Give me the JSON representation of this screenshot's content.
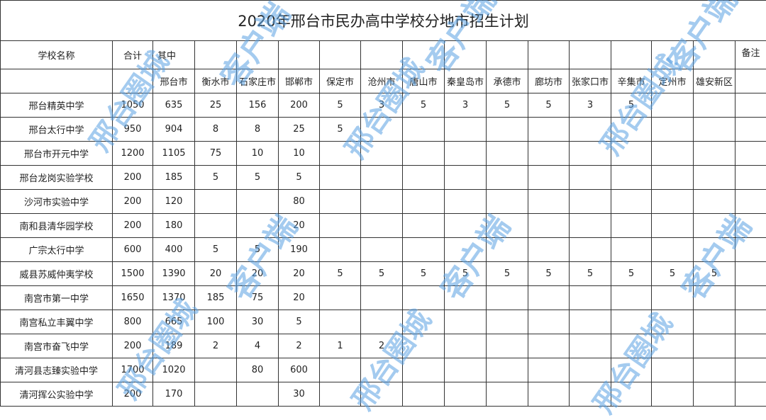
{
  "title": "2020年邢台市民办高中学校分地市招生计划",
  "header": {
    "school_name": "学校名称",
    "total": "合计",
    "of_which": "其中",
    "remarks": "备注",
    "cities": [
      "邢台市",
      "衡水市",
      "石家庄市",
      "邯郸市",
      "保定市",
      "沧州市",
      "唐山市",
      "秦皇岛市",
      "承德市",
      "廊坊市",
      "张家口市",
      "辛集市",
      "定州市",
      "雄安新区"
    ]
  },
  "rows": [
    {
      "name": "邢台精英中学",
      "total": "1050",
      "values": [
        "635",
        "25",
        "156",
        "200",
        "5",
        "3",
        "5",
        "3",
        "5",
        "5",
        "3",
        "5",
        "",
        ""
      ]
    },
    {
      "name": "邢台太行中学",
      "total": "950",
      "values": [
        "904",
        "8",
        "8",
        "25",
        "5",
        "",
        "",
        "",
        "",
        "",
        "",
        "",
        "",
        ""
      ]
    },
    {
      "name": "邢台市开元中学",
      "total": "1200",
      "values": [
        "1105",
        "75",
        "10",
        "10",
        "",
        "",
        "",
        "",
        "",
        "",
        "",
        "",
        "",
        ""
      ]
    },
    {
      "name": "邢台龙岗实验学校",
      "total": "200",
      "values": [
        "185",
        "5",
        "5",
        "5",
        "",
        "",
        "",
        "",
        "",
        "",
        "",
        "",
        "",
        ""
      ]
    },
    {
      "name": "沙河市实验中学",
      "total": "200",
      "values": [
        "120",
        "",
        "",
        "80",
        "",
        "",
        "",
        "",
        "",
        "",
        "",
        "",
        "",
        ""
      ]
    },
    {
      "name": "南和县清华园学校",
      "total": "200",
      "values": [
        "180",
        "",
        "",
        "20",
        "",
        "",
        "",
        "",
        "",
        "",
        "",
        "",
        "",
        ""
      ]
    },
    {
      "name": "广宗太行中学",
      "total": "600",
      "values": [
        "400",
        "5",
        "5",
        "190",
        "",
        "",
        "",
        "",
        "",
        "",
        "",
        "",
        "",
        ""
      ]
    },
    {
      "name": "威县苏威仲夷学校",
      "total": "1500",
      "values": [
        "1390",
        "20",
        "20",
        "20",
        "5",
        "5",
        "5",
        "5",
        "5",
        "5",
        "5",
        "5",
        "5",
        "5"
      ]
    },
    {
      "name": "南宫市第一中学",
      "total": "1650",
      "values": [
        "1370",
        "185",
        "75",
        "20",
        "",
        "",
        "",
        "",
        "",
        "",
        "",
        "",
        "",
        ""
      ]
    },
    {
      "name": "南宫私立丰翼中学",
      "total": "800",
      "values": [
        "665",
        "100",
        "30",
        "5",
        "",
        "",
        "",
        "",
        "",
        "",
        "",
        "",
        "",
        ""
      ]
    },
    {
      "name": "南宫市奋飞中学",
      "total": "200",
      "values": [
        "189",
        "2",
        "4",
        "2",
        "1",
        "2",
        "",
        "",
        "",
        "",
        "",
        "",
        "",
        ""
      ]
    },
    {
      "name": "清河县志臻实验中学",
      "total": "1700",
      "values": [
        "1020",
        "",
        "80",
        "600",
        "",
        "",
        "",
        "",
        "",
        "",
        "",
        "",
        "",
        ""
      ]
    },
    {
      "name": "清河挥公实验中学",
      "total": "200",
      "values": [
        "170",
        "",
        "",
        "30",
        "",
        "",
        "",
        "",
        "",
        "",
        "",
        "",
        "",
        ""
      ]
    }
  ],
  "watermark": {
    "line1": "邢台圈城",
    "line2": "客户端",
    "color": "#5aa0e1"
  }
}
